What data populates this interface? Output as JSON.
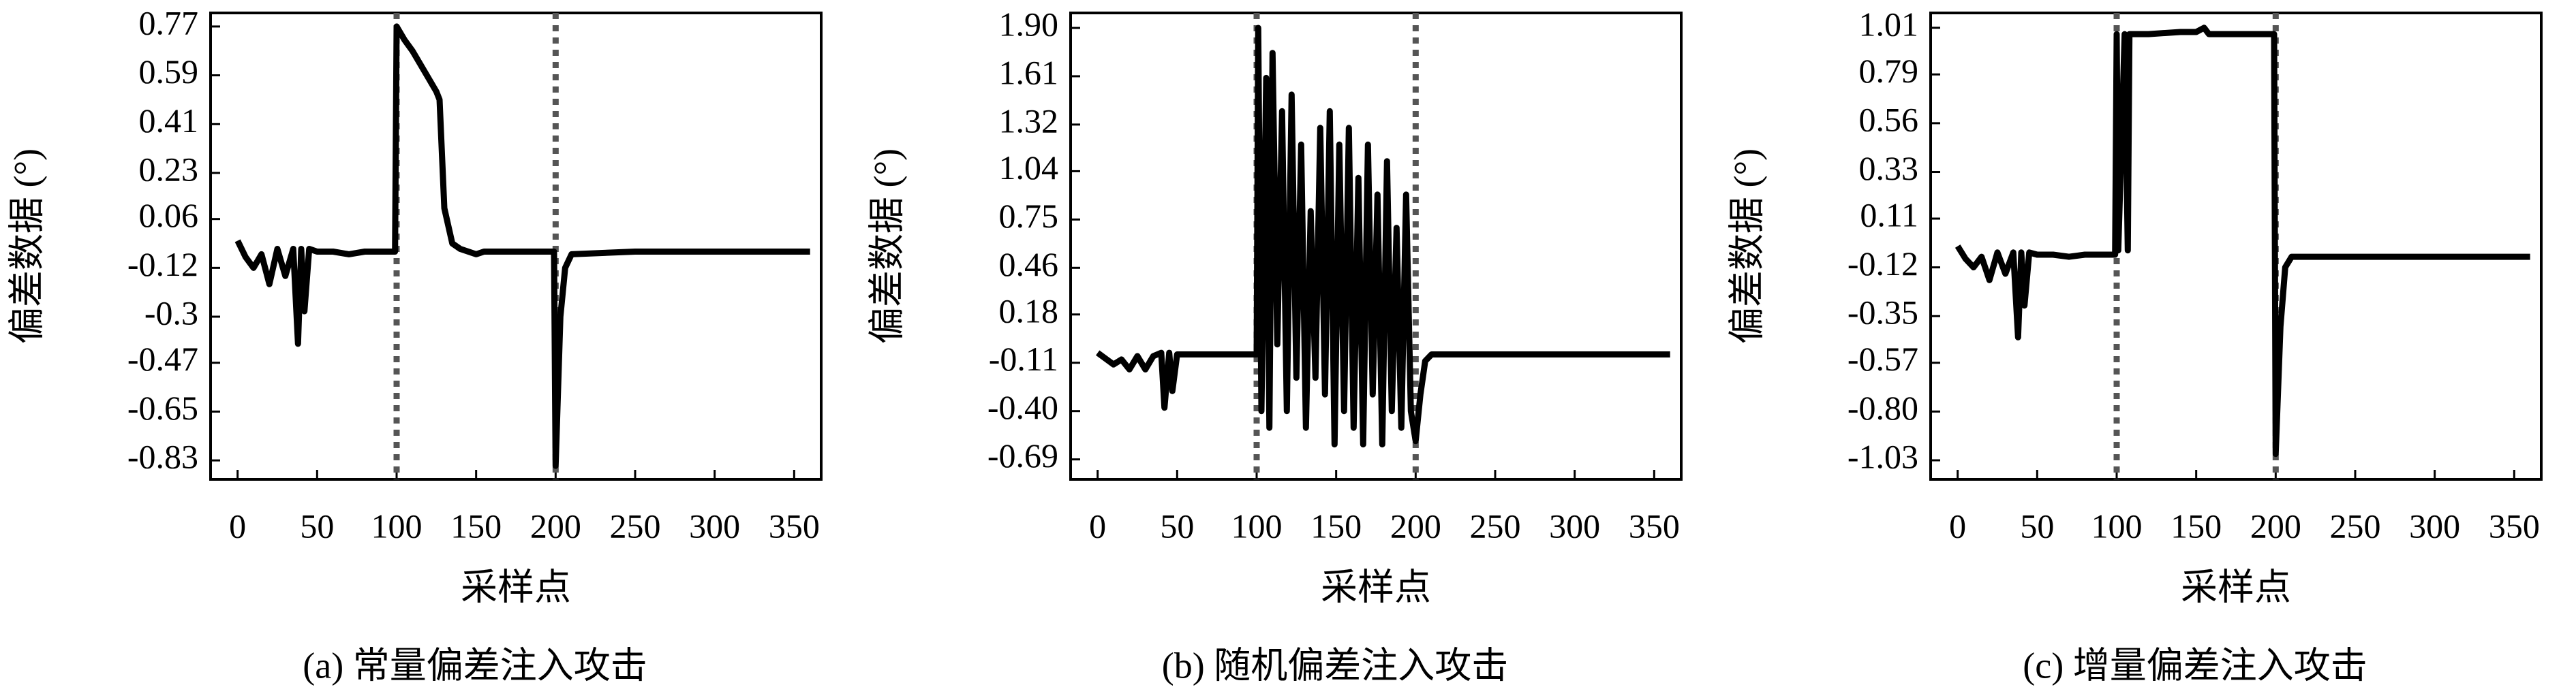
{
  "chart_data": [
    {
      "type": "line",
      "y_label": "偏差数据 (°)",
      "x_label": "采样点",
      "caption": "(a) 常量偏差注入攻击",
      "x": [
        0,
        5,
        10,
        15,
        20,
        25,
        30,
        35,
        38,
        40,
        42,
        45,
        50,
        60,
        70,
        80,
        90,
        99,
        100,
        105,
        110,
        120,
        125,
        127,
        130,
        135,
        140,
        150,
        155,
        170,
        185,
        199,
        200,
        203,
        206,
        210,
        250,
        300,
        360
      ],
      "values": [
        -0.02,
        -0.08,
        -0.12,
        -0.07,
        -0.18,
        -0.05,
        -0.15,
        -0.05,
        -0.4,
        -0.05,
        -0.28,
        -0.05,
        -0.06,
        -0.06,
        -0.07,
        -0.06,
        -0.06,
        -0.06,
        0.77,
        0.72,
        0.68,
        0.58,
        0.53,
        0.5,
        0.1,
        -0.03,
        -0.05,
        -0.07,
        -0.06,
        -0.06,
        -0.06,
        -0.06,
        -0.85,
        -0.3,
        -0.12,
        -0.07,
        -0.06,
        -0.06,
        -0.06
      ],
      "color": "#000000",
      "vlines": [
        100,
        200
      ],
      "vline_color": "#555555",
      "xlim": [
        -17,
        367
      ],
      "ylim": [
        -0.9,
        0.82
      ],
      "xticks": [
        0,
        50,
        100,
        150,
        200,
        250,
        300,
        350
      ],
      "yticks": [
        0.77,
        0.59,
        0.41,
        0.23,
        0.06,
        -0.12,
        -0.3,
        -0.47,
        -0.65,
        -0.83
      ],
      "grid": false
    },
    {
      "type": "line",
      "y_label": "偏差数据 (°)",
      "x_label": "采样点",
      "caption": "(b) 随机偏差注入攻击",
      "x": [
        0,
        10,
        15,
        20,
        25,
        30,
        35,
        40,
        42,
        45,
        47,
        50,
        70,
        100,
        101,
        103,
        106,
        108,
        110,
        113,
        116,
        119,
        122,
        125,
        128,
        131,
        134,
        137,
        140,
        143,
        146,
        149,
        152,
        155,
        158,
        161,
        164,
        167,
        170,
        173,
        176,
        179,
        182,
        185,
        188,
        191,
        194,
        197,
        200,
        203,
        206,
        210,
        260,
        310,
        360
      ],
      "values": [
        -0.05,
        -0.12,
        -0.09,
        -0.15,
        -0.07,
        -0.15,
        -0.07,
        -0.05,
        -0.38,
        -0.05,
        -0.28,
        -0.06,
        -0.06,
        -0.06,
        1.9,
        -0.4,
        1.6,
        -0.5,
        1.75,
        0.0,
        1.4,
        -0.4,
        1.5,
        -0.2,
        1.2,
        -0.5,
        0.8,
        -0.2,
        1.3,
        -0.3,
        1.4,
        -0.6,
        1.2,
        -0.4,
        1.3,
        -0.5,
        1.0,
        -0.6,
        1.2,
        -0.3,
        0.9,
        -0.6,
        1.1,
        -0.4,
        0.7,
        -0.5,
        0.9,
        -0.4,
        -0.58,
        -0.3,
        -0.1,
        -0.06,
        -0.06,
        -0.06,
        -0.06
      ],
      "color": "#000000",
      "vlines": [
        100,
        200
      ],
      "vline_color": "#555555",
      "xlim": [
        -17,
        367
      ],
      "ylim": [
        -0.81,
        1.99
      ],
      "xticks": [
        0,
        50,
        100,
        150,
        200,
        250,
        300,
        350
      ],
      "yticks": [
        {
          "value": 1.9,
          "label": "1.90"
        },
        1.61,
        1.32,
        1.04,
        0.75,
        0.46,
        0.18,
        -0.11,
        {
          "value": -0.4,
          "label": "-0.40"
        },
        -0.69
      ],
      "grid": false
    },
    {
      "type": "line",
      "y_label": "偏差数据 (°)",
      "x_label": "采样点",
      "caption": "(c) 增量偏差注入攻击",
      "x": [
        0,
        5,
        10,
        15,
        20,
        25,
        30,
        35,
        38,
        40,
        42,
        45,
        50,
        60,
        70,
        80,
        90,
        99,
        100,
        101,
        105,
        107,
        108,
        120,
        140,
        150,
        155,
        158,
        180,
        199,
        200,
        203,
        206,
        210,
        250,
        300,
        360
      ],
      "values": [
        -0.02,
        -0.08,
        -0.12,
        -0.07,
        -0.18,
        -0.05,
        -0.15,
        -0.05,
        -0.45,
        -0.05,
        -0.3,
        -0.05,
        -0.06,
        -0.06,
        -0.07,
        -0.06,
        -0.06,
        -0.06,
        0.98,
        -0.04,
        0.98,
        -0.04,
        0.98,
        0.98,
        0.99,
        0.99,
        1.01,
        0.98,
        0.98,
        0.98,
        -1.0,
        -0.4,
        -0.12,
        -0.07,
        -0.07,
        -0.07,
        -0.07
      ],
      "color": "#000000",
      "vlines": [
        100,
        200
      ],
      "vline_color": "#555555",
      "xlim": [
        -17,
        367
      ],
      "ylim": [
        -1.12,
        1.08
      ],
      "xticks": [
        0,
        50,
        100,
        150,
        200,
        250,
        300,
        350
      ],
      "yticks": [
        1.01,
        0.79,
        0.56,
        0.33,
        0.11,
        -0.12,
        -0.35,
        -0.57,
        {
          "value": -0.8,
          "label": "-0.80"
        },
        -1.03
      ],
      "grid": false
    }
  ]
}
